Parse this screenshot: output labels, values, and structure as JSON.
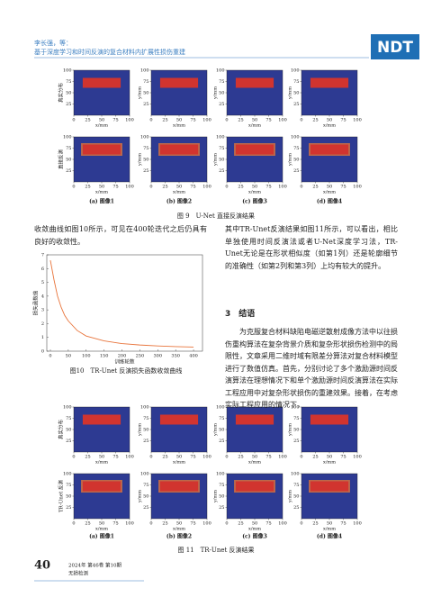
{
  "header": {
    "authors": "李长强，等：",
    "title": "基于深度学习和时间反演的复合材料内扩展性损伤重建",
    "logo": "NDT"
  },
  "panel_axes": {
    "xticks": [
      0,
      25,
      50,
      75,
      100
    ],
    "yticks": [
      25,
      50,
      75,
      100
    ],
    "xlim": [
      0,
      100
    ],
    "ylim": [
      0,
      100
    ],
    "xlabel": "x/mm",
    "ylabel": "y/mm"
  },
  "figure9": {
    "row_labels": [
      "真实分布",
      "直接反演"
    ],
    "panel_captions": [
      "(a) 图像1",
      "(b) 图像2",
      "(c) 图像3",
      "(d) 图像4"
    ],
    "caption": "图 9　U-Net 直接反演结果"
  },
  "left_text": "收敛曲线如图10所示，可见在400轮迭代之后仍具有良好的收敛性。",
  "figure10": {
    "type": "line",
    "x": [
      0,
      10,
      20,
      30,
      40,
      50,
      75,
      100,
      150,
      200,
      250,
      300,
      350,
      400
    ],
    "values": [
      6.6,
      5.2,
      4.0,
      3.2,
      2.6,
      2.2,
      1.5,
      1.1,
      0.75,
      0.55,
      0.45,
      0.38,
      0.33,
      0.3
    ],
    "color": "#e8743b",
    "xlim": [
      -10,
      425
    ],
    "ylim": [
      0,
      7
    ],
    "xticks": [
      0,
      50,
      100,
      150,
      200,
      250,
      300,
      350,
      400
    ],
    "yticks": [
      0,
      1,
      2,
      3,
      4,
      5,
      6,
      7
    ],
    "xlabel": "训练轮数",
    "ylabel": "损失函数值",
    "caption": "图10　TR-Unet 反演损失函数收敛曲线"
  },
  "right_text": "其中TR-Unet反演结果如图11所示，可以看出，相比单独使用时间反演法或者U-Net深度学习法，TR-Unet无论是在形状相似度（如第1列）还是轮廓细节的准确性（如第2列和第3列）上均有较大的提升。",
  "section": {
    "heading": "3　结语",
    "text": "为克服复合材料缺陷电磁逆散射成像方法中以往损伤重构算法在复杂背景介质和复杂形状损伤检测中的局限性，文章采用二维时域有限差分算法对复合材料模型进行了数值仿真。首先，分别讨论了多个激励源时间反演算法在理想情况下和单个激励源时间反演算法在实际工程应用中对复杂形状损伤的重建效果。接着，在考虑实际工程应用的情况下，"
  },
  "figure11": {
    "row_labels": [
      "真实分布",
      "TR-Unet 反演"
    ],
    "panel_captions": [
      "(a) 图像1",
      "(b) 图像2",
      "(c) 图像3",
      "(d) 图像4"
    ],
    "caption": "图 11　TR-Unet 反演结果"
  },
  "footer": {
    "page": "40",
    "issue": "2024年 第46卷 第10期",
    "journal": "无损检测"
  }
}
